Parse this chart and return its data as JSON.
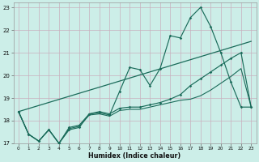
{
  "xlabel": "Humidex (Indice chaleur)",
  "bg_color": "#cceee8",
  "grid_color": "#c8b0be",
  "line_color": "#1a6b5a",
  "xlim": [
    -0.5,
    23.5
  ],
  "ylim": [
    17,
    23.2
  ],
  "xticks": [
    0,
    1,
    2,
    3,
    4,
    5,
    6,
    7,
    8,
    9,
    10,
    11,
    12,
    13,
    14,
    15,
    16,
    17,
    18,
    19,
    20,
    21,
    22,
    23
  ],
  "yticks": [
    17,
    18,
    19,
    20,
    21,
    22,
    23
  ],
  "line1_x": [
    0,
    1,
    2,
    3,
    4,
    5,
    6,
    7,
    8,
    9,
    10,
    11,
    12,
    13,
    14,
    15,
    16,
    17,
    18,
    19,
    20,
    21,
    22,
    23
  ],
  "line1_y": [
    18.4,
    17.4,
    17.1,
    17.6,
    17.0,
    17.6,
    17.7,
    18.3,
    18.35,
    18.25,
    19.3,
    20.35,
    20.25,
    19.55,
    20.3,
    21.75,
    21.65,
    22.55,
    23.0,
    22.15,
    21.0,
    19.7,
    18.6,
    18.6
  ],
  "line2_x": [
    0,
    1,
    2,
    3,
    4,
    5,
    6,
    7,
    8,
    9,
    10,
    11,
    12,
    13,
    14,
    15,
    16,
    17,
    18,
    19,
    20,
    21,
    22,
    23
  ],
  "line2_y": [
    18.4,
    17.4,
    17.1,
    17.6,
    17.0,
    17.7,
    17.8,
    18.3,
    18.4,
    18.3,
    18.55,
    18.6,
    18.6,
    18.7,
    18.8,
    18.95,
    19.15,
    19.55,
    19.85,
    20.15,
    20.45,
    20.75,
    21.0,
    18.6
  ],
  "line3_x": [
    0,
    23
  ],
  "line3_y": [
    18.4,
    21.5
  ],
  "line4_x": [
    0,
    1,
    2,
    3,
    4,
    5,
    6,
    7,
    8,
    9,
    10,
    11,
    12,
    13,
    14,
    15,
    16,
    17,
    18,
    19,
    20,
    21,
    22,
    23
  ],
  "line4_y": [
    18.4,
    17.4,
    17.1,
    17.6,
    17.0,
    17.65,
    17.75,
    18.25,
    18.3,
    18.2,
    18.45,
    18.5,
    18.5,
    18.6,
    18.7,
    18.8,
    18.9,
    18.95,
    19.1,
    19.35,
    19.65,
    19.95,
    20.3,
    18.6
  ]
}
